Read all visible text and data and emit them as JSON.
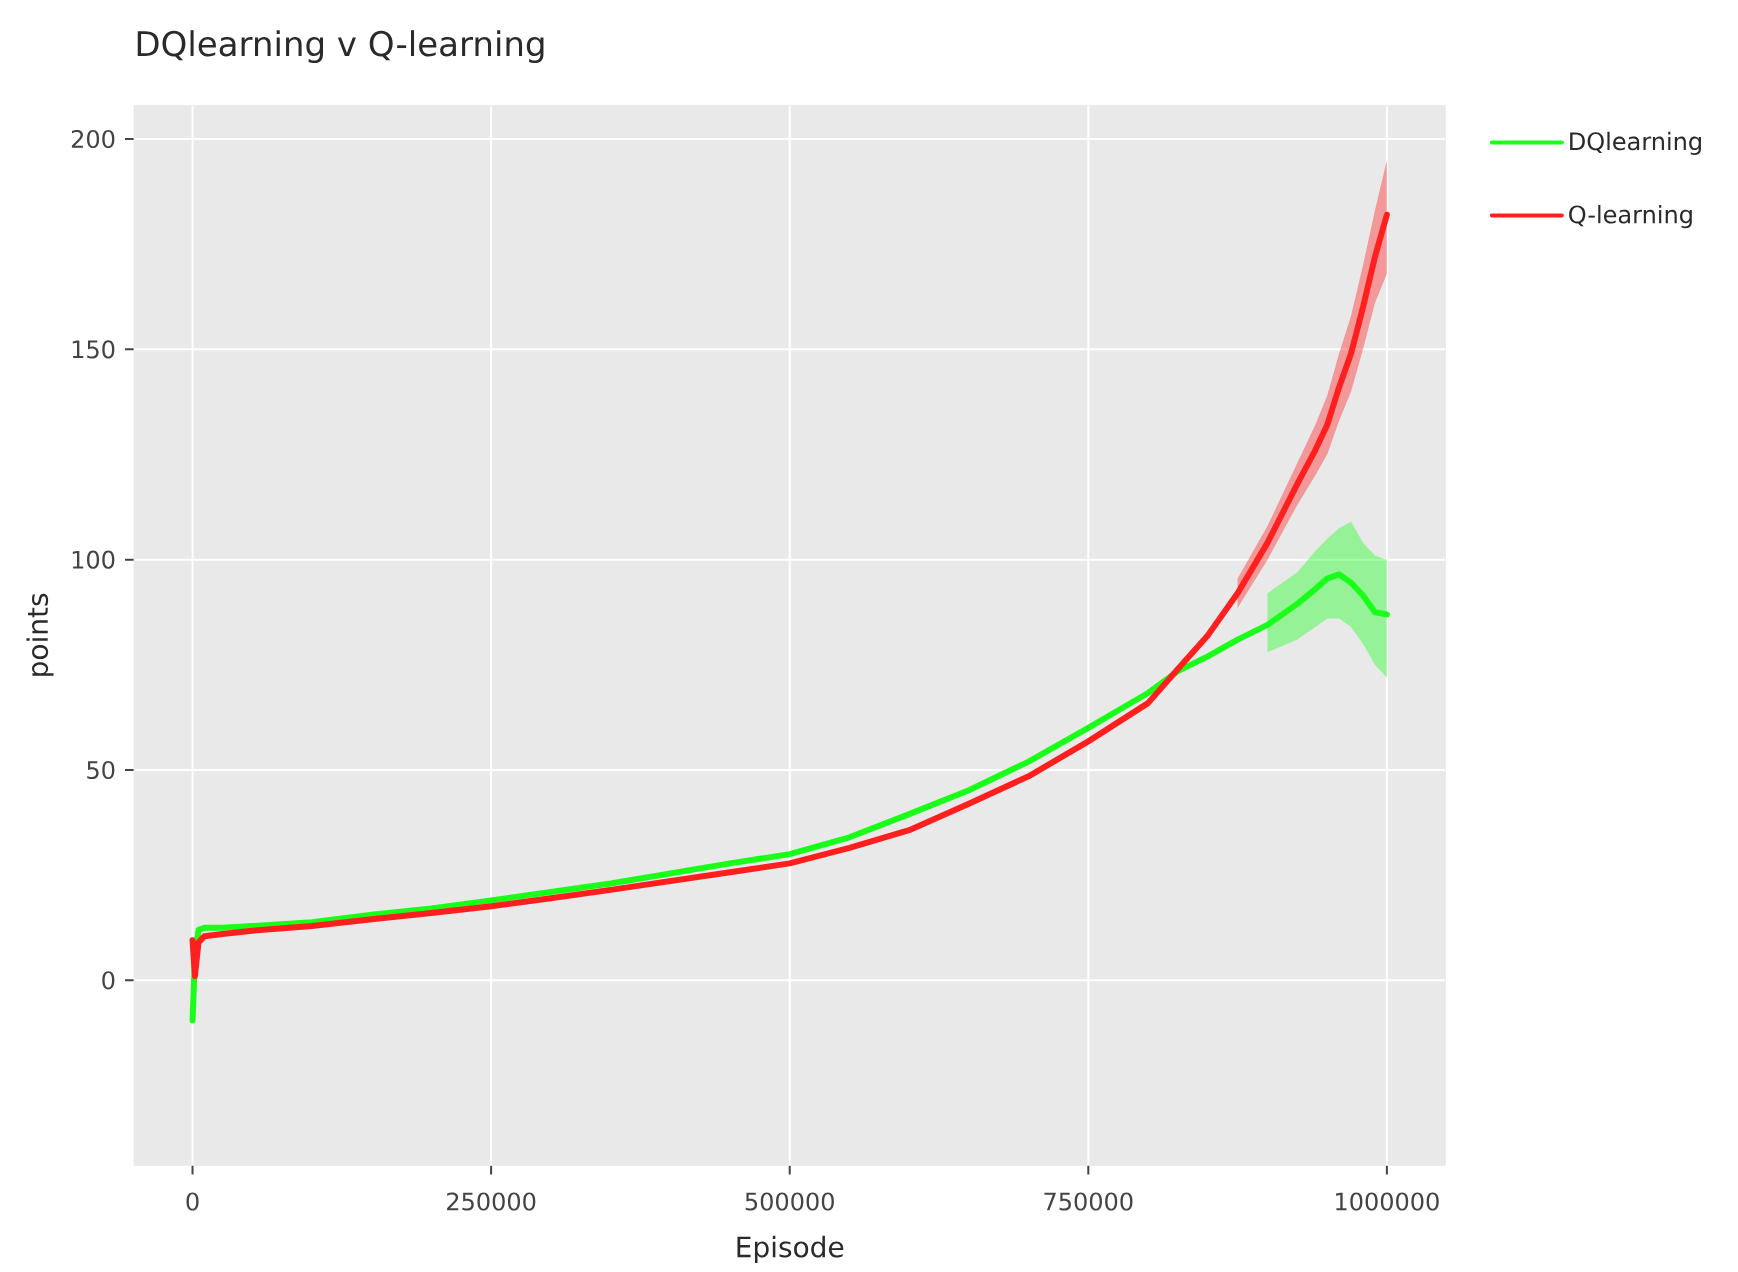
{
  "chart_data": {
    "type": "line",
    "title": "DQlearning v Q-learning",
    "xlabel": "Episode",
    "ylabel": "points",
    "x": [
      0,
      2000,
      5000,
      10000,
      25000,
      50000,
      100000,
      150000,
      200000,
      250000,
      300000,
      350000,
      400000,
      450000,
      500000,
      550000,
      600000,
      650000,
      700000,
      750000,
      800000,
      825000,
      850000,
      875000,
      900000,
      925000,
      940000,
      950000,
      960000,
      970000,
      980000,
      990000,
      1000000
    ],
    "series": [
      {
        "name": "DQlearning",
        "color": "#1aff1a",
        "values": [
          -9.5,
          5,
          12,
          12.5,
          12.5,
          12.9,
          13.8,
          15.6,
          17.1,
          19,
          21,
          23,
          25.4,
          27.8,
          30,
          34,
          39.5,
          45.2,
          52,
          60,
          68.3,
          73.5,
          77,
          81,
          84.5,
          89.5,
          93,
          95.5,
          96.5,
          94.5,
          91.5,
          87.5,
          87
        ],
        "lower": [
          null,
          null,
          null,
          null,
          null,
          null,
          null,
          null,
          null,
          null,
          null,
          null,
          null,
          null,
          null,
          null,
          null,
          null,
          null,
          null,
          null,
          null,
          null,
          null,
          78,
          81,
          84,
          86,
          86,
          84,
          80,
          75,
          72
        ],
        "upper": [
          null,
          null,
          null,
          null,
          null,
          null,
          null,
          null,
          null,
          null,
          null,
          null,
          null,
          null,
          null,
          null,
          null,
          null,
          null,
          null,
          null,
          null,
          null,
          null,
          92,
          97,
          102,
          105,
          107.5,
          109,
          104,
          101,
          100
        ]
      },
      {
        "name": "Q-learning",
        "color": "#ff1f1f",
        "values": [
          9.5,
          1,
          9,
          10.5,
          11,
          11.8,
          12.9,
          14.5,
          16,
          17.6,
          19.5,
          21.5,
          23.6,
          25.7,
          27.8,
          31.5,
          35.7,
          42,
          48.5,
          56.8,
          65.9,
          74,
          82,
          92,
          104,
          118,
          126,
          132,
          141,
          149,
          160,
          172,
          182
        ],
        "lower": [
          null,
          null,
          null,
          null,
          null,
          null,
          null,
          null,
          null,
          null,
          null,
          null,
          null,
          null,
          null,
          null,
          null,
          null,
          null,
          null,
          null,
          null,
          null,
          88.5,
          100,
          113,
          120,
          125,
          133,
          140,
          150,
          161,
          168
        ],
        "upper": [
          null,
          null,
          null,
          null,
          null,
          null,
          null,
          null,
          null,
          null,
          null,
          null,
          null,
          null,
          null,
          null,
          null,
          null,
          null,
          null,
          null,
          null,
          null,
          95.5,
          108,
          123,
          132,
          139,
          149,
          158,
          170,
          183,
          195
        ]
      }
    ],
    "xlim": [
      -49000,
      1049000
    ],
    "ylim": [
      -44,
      208
    ],
    "xticks": [
      0,
      250000,
      500000,
      750000,
      1000000
    ],
    "yticks": [
      0,
      50,
      100,
      150,
      200
    ],
    "grid": true,
    "legend": "top right",
    "line_style": "solid"
  }
}
